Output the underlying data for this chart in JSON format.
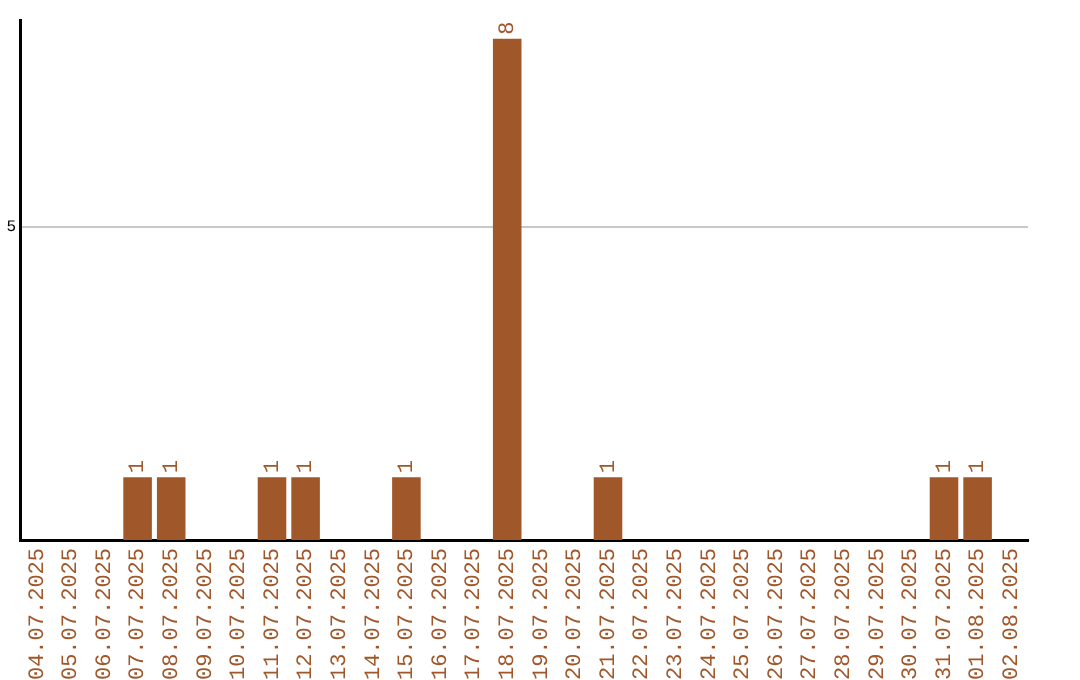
{
  "chart_data": {
    "type": "bar",
    "categories": [
      "04.07.2025",
      "05.07.2025",
      "06.07.2025",
      "07.07.2025",
      "08.07.2025",
      "09.07.2025",
      "10.07.2025",
      "11.07.2025",
      "12.07.2025",
      "13.07.2025",
      "14.07.2025",
      "15.07.2025",
      "16.07.2025",
      "17.07.2025",
      "18.07.2025",
      "19.07.2025",
      "20.07.2025",
      "21.07.2025",
      "22.07.2025",
      "23.07.2025",
      "24.07.2025",
      "25.07.2025",
      "26.07.2025",
      "27.07.2025",
      "28.07.2025",
      "29.07.2025",
      "30.07.2025",
      "31.07.2025",
      "01.08.2025",
      "02.08.2025"
    ],
    "values": [
      0,
      0,
      0,
      1,
      1,
      0,
      0,
      1,
      1,
      0,
      0,
      1,
      0,
      0,
      8,
      0,
      0,
      1,
      0,
      0,
      0,
      0,
      0,
      0,
      0,
      0,
      0,
      1,
      1,
      0
    ],
    "value_labels": [
      null,
      null,
      null,
      "1",
      "1",
      null,
      null,
      "1",
      "1",
      null,
      null,
      "1",
      null,
      null,
      "8",
      null,
      null,
      "1",
      null,
      null,
      null,
      null,
      null,
      null,
      null,
      null,
      null,
      "1",
      "1",
      null
    ],
    "color": "#a0572a",
    "ylim": [
      0,
      8.3
    ],
    "yticks": [
      5
    ],
    "grid": "y",
    "legend": false
  }
}
